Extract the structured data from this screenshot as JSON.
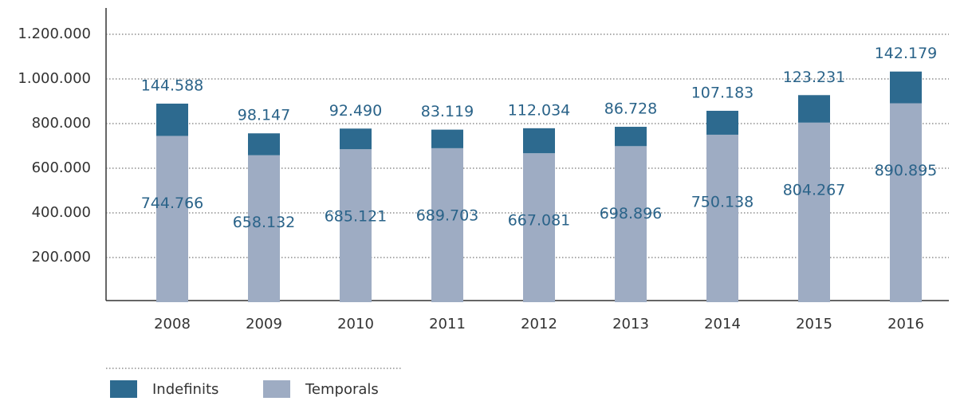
{
  "chart_data": {
    "type": "stacked_bar",
    "categories": [
      "2008",
      "2009",
      "2010",
      "2011",
      "2012",
      "2013",
      "2014",
      "2015",
      "2016"
    ],
    "series": [
      {
        "name": "Indefinits",
        "color": "#2d6a8f",
        "values": [
          144588,
          98147,
          92490,
          83119,
          112034,
          86728,
          107183,
          123231,
          142179
        ],
        "value_labels": [
          "144.588",
          "98.147",
          "92.490",
          "83.119",
          "112.034",
          "86.728",
          "107.183",
          "123.231",
          "142.179"
        ]
      },
      {
        "name": "Temporals",
        "color": "#9eacc3",
        "values": [
          744766,
          658132,
          685121,
          689703,
          667081,
          698896,
          750138,
          804267,
          890895
        ],
        "value_labels": [
          "744.766",
          "658.132",
          "685.121",
          "689.703",
          "667.081",
          "698.896",
          "750.138",
          "804.267",
          "890.895"
        ]
      }
    ],
    "ylim": [
      0,
      1300000
    ],
    "yticks": [
      {
        "value": 200000,
        "label": "200.000"
      },
      {
        "value": 400000,
        "label": "400.000"
      },
      {
        "value": 600000,
        "label": "600.000"
      },
      {
        "value": 800000,
        "label": "800.000"
      },
      {
        "value": 1000000,
        "label": "1.000.000"
      },
      {
        "value": 1200000,
        "label": "1.200.000"
      }
    ],
    "grid": true
  }
}
